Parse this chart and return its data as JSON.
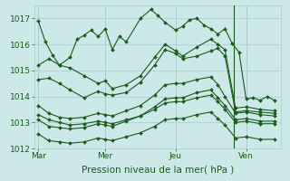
{
  "xlabel": "Pression niveau de la mer( hPa )",
  "xlim": [
    0,
    3.5
  ],
  "ylim": [
    1012,
    1017.5
  ],
  "yticks": [
    1012,
    1013,
    1014,
    1015,
    1016,
    1017
  ],
  "xtick_positions": [
    0.05,
    1.0,
    2.0,
    3.0
  ],
  "xtick_labels": [
    "Mar",
    "Mer",
    "Jeu",
    "Ven"
  ],
  "bg_color": "#cce8e8",
  "grid_color": "#aacccc",
  "line_color": "#1a5c1a",
  "lines": [
    [
      0.05,
      1016.9,
      0.15,
      1016.1,
      0.25,
      1015.6,
      0.35,
      1015.2,
      0.5,
      1015.5,
      0.6,
      1016.2,
      0.7,
      1016.35,
      0.8,
      1016.55,
      0.9,
      1016.3,
      1.0,
      1016.6,
      1.1,
      1015.8,
      1.2,
      1016.3,
      1.3,
      1016.1,
      1.5,
      1017.0,
      1.65,
      1017.35,
      1.75,
      1017.1,
      1.85,
      1016.85,
      2.0,
      1016.55,
      2.1,
      1016.7,
      2.2,
      1016.95,
      2.3,
      1017.0,
      2.4,
      1016.75,
      2.5,
      1016.6,
      2.6,
      1016.4,
      2.7,
      1016.6,
      2.8,
      1016.05,
      2.9,
      1015.7,
      3.0,
      1013.9,
      3.1,
      1013.95,
      3.2,
      1013.85,
      3.3,
      1014.0,
      3.4,
      1013.85
    ],
    [
      0.05,
      1015.2,
      0.2,
      1015.45,
      0.35,
      1015.2,
      0.5,
      1015.1,
      0.7,
      1014.8,
      0.9,
      1014.5,
      1.0,
      1014.6,
      1.1,
      1014.3,
      1.3,
      1014.45,
      1.5,
      1014.8,
      1.7,
      1015.5,
      1.85,
      1016.0,
      2.0,
      1015.75,
      2.1,
      1015.55,
      2.3,
      1015.9,
      2.5,
      1016.2,
      2.6,
      1016.0,
      2.7,
      1015.8,
      2.85,
      1013.55,
      3.0,
      1013.6,
      3.2,
      1013.5,
      3.4,
      1013.45
    ],
    [
      0.05,
      1014.65,
      0.2,
      1014.7,
      0.35,
      1014.5,
      0.5,
      1014.25,
      0.7,
      1013.95,
      0.9,
      1014.2,
      1.0,
      1014.1,
      1.1,
      1014.05,
      1.3,
      1014.15,
      1.5,
      1014.55,
      1.7,
      1015.2,
      1.85,
      1015.8,
      2.0,
      1015.65,
      2.1,
      1015.45,
      2.3,
      1015.55,
      2.5,
      1015.75,
      2.6,
      1015.85,
      2.7,
      1015.55,
      2.85,
      1013.4,
      3.0,
      1013.45,
      3.2,
      1013.4,
      3.4,
      1013.35
    ],
    [
      0.05,
      1013.65,
      0.2,
      1013.35,
      0.35,
      1013.2,
      0.5,
      1013.15,
      0.7,
      1013.2,
      0.9,
      1013.35,
      1.0,
      1013.3,
      1.1,
      1013.25,
      1.3,
      1013.45,
      1.5,
      1013.65,
      1.7,
      1014.05,
      1.85,
      1014.45,
      2.0,
      1014.5,
      2.1,
      1014.5,
      2.3,
      1014.65,
      2.5,
      1014.75,
      2.6,
      1014.45,
      2.7,
      1014.0,
      2.85,
      1013.35,
      3.0,
      1013.4,
      3.2,
      1013.3,
      3.4,
      1013.25
    ],
    [
      0.05,
      1013.1,
      0.2,
      1012.85,
      0.35,
      1012.8,
      0.5,
      1012.75,
      0.7,
      1012.8,
      0.9,
      1012.95,
      1.0,
      1012.9,
      1.1,
      1012.85,
      1.3,
      1013.05,
      1.5,
      1013.25,
      1.7,
      1013.6,
      1.85,
      1013.9,
      2.0,
      1013.95,
      2.1,
      1013.95,
      2.3,
      1014.15,
      2.5,
      1014.25,
      2.6,
      1013.95,
      2.7,
      1013.65,
      2.85,
      1013.1,
      3.0,
      1013.15,
      3.2,
      1013.05,
      3.4,
      1013.05
    ],
    [
      0.05,
      1013.3,
      0.2,
      1013.1,
      0.35,
      1013.0,
      0.5,
      1012.9,
      0.7,
      1012.95,
      0.9,
      1013.05,
      1.0,
      1013.0,
      1.1,
      1012.95,
      1.3,
      1013.1,
      1.5,
      1013.25,
      1.7,
      1013.5,
      1.85,
      1013.75,
      2.0,
      1013.8,
      2.1,
      1013.8,
      2.3,
      1013.95,
      2.5,
      1014.05,
      2.6,
      1013.8,
      2.7,
      1013.5,
      2.85,
      1013.0,
      3.0,
      1013.05,
      3.2,
      1012.95,
      3.4,
      1012.95
    ],
    [
      0.05,
      1012.55,
      0.2,
      1012.3,
      0.35,
      1012.25,
      0.5,
      1012.2,
      0.7,
      1012.25,
      0.9,
      1012.4,
      1.0,
      1012.35,
      1.1,
      1012.3,
      1.3,
      1012.45,
      1.5,
      1012.6,
      1.7,
      1012.85,
      1.85,
      1013.1,
      2.0,
      1013.15,
      2.1,
      1013.15,
      2.3,
      1013.3,
      2.5,
      1013.4,
      2.6,
      1013.15,
      2.7,
      1012.9,
      2.85,
      1012.4,
      3.0,
      1012.45,
      3.2,
      1012.35,
      3.4,
      1012.35
    ]
  ],
  "vline_x": 2.83,
  "marker": "D",
  "markersize": 2.0,
  "linewidth": 0.8,
  "tick_fontsize": 6.5,
  "xlabel_fontsize": 7.5
}
